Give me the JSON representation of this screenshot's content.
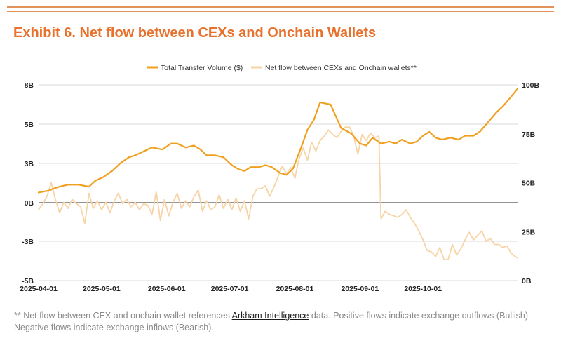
{
  "title": "Exhibit 6. Net flow between CEXs and Onchain Wallets",
  "footnote": {
    "prefix": "** Net flow between CEX and onchain wallet references ",
    "link": "Arkham Intelligence",
    "suffix": " data. Positive flows indicate exchange outflows (Bullish). Negative flows indicate exchange inflows (Bearish)."
  },
  "colors": {
    "volume": "#f0a020",
    "netflow": "#f6d4a6",
    "title": "#e8712e",
    "grid": "#cccccc",
    "zero": "#555555"
  },
  "chart_data": {
    "type": "line",
    "legend_position": "top-center",
    "grid": true,
    "x_ticks": [
      "2025-04-01",
      "2025-05-01",
      "2025-06-01",
      "2025-07-01",
      "2025-08-01",
      "2025-09-01",
      "2025-10-01"
    ],
    "y_left": {
      "ticks": [
        "8B",
        "5B",
        "3B",
        "0B",
        "-3B",
        "-5B"
      ],
      "range": [
        -5,
        8
      ]
    },
    "y_right": {
      "ticks": [
        "100B",
        "75B",
        "50B",
        "25B",
        "0B"
      ],
      "range": [
        0,
        100
      ]
    },
    "series": [
      {
        "name": "Total Transfer Volume ($)",
        "axis": "right",
        "points": [
          [
            "2025-04-01",
            45
          ],
          [
            "2025-04-06",
            46
          ],
          [
            "2025-04-08",
            47
          ],
          [
            "2025-04-11",
            48
          ],
          [
            "2025-04-15",
            49
          ],
          [
            "2025-04-20",
            49
          ],
          [
            "2025-04-25",
            48
          ],
          [
            "2025-04-28",
            51
          ],
          [
            "2025-05-02",
            53
          ],
          [
            "2025-05-06",
            56
          ],
          [
            "2025-05-10",
            60
          ],
          [
            "2025-05-14",
            63
          ],
          [
            "2025-05-17",
            64
          ],
          [
            "2025-05-21",
            66
          ],
          [
            "2025-05-25",
            68
          ],
          [
            "2025-05-30",
            67
          ],
          [
            "2025-06-03",
            70
          ],
          [
            "2025-06-06",
            70
          ],
          [
            "2025-06-10",
            68
          ],
          [
            "2025-06-14",
            69
          ],
          [
            "2025-06-17",
            67
          ],
          [
            "2025-06-20",
            64
          ],
          [
            "2025-06-24",
            64
          ],
          [
            "2025-06-28",
            63
          ],
          [
            "2025-07-02",
            59
          ],
          [
            "2025-07-05",
            57
          ],
          [
            "2025-07-08",
            56
          ],
          [
            "2025-07-11",
            58
          ],
          [
            "2025-07-15",
            58
          ],
          [
            "2025-07-18",
            59
          ],
          [
            "2025-07-21",
            58
          ],
          [
            "2025-07-25",
            55
          ],
          [
            "2025-07-28",
            54
          ],
          [
            "2025-07-31",
            57
          ],
          [
            "2025-08-04",
            68
          ],
          [
            "2025-08-07",
            77
          ],
          [
            "2025-08-10",
            82
          ],
          [
            "2025-08-13",
            91
          ],
          [
            "2025-08-18",
            90
          ],
          [
            "2025-08-23",
            78
          ],
          [
            "2025-08-28",
            75
          ],
          [
            "2025-09-01",
            70
          ],
          [
            "2025-09-04",
            69
          ],
          [
            "2025-09-07",
            73
          ],
          [
            "2025-09-11",
            70
          ],
          [
            "2025-09-15",
            71
          ],
          [
            "2025-09-18",
            70
          ],
          [
            "2025-09-21",
            72
          ],
          [
            "2025-09-25",
            70
          ],
          [
            "2025-09-28",
            71
          ],
          [
            "2025-10-01",
            74
          ],
          [
            "2025-10-04",
            76
          ],
          [
            "2025-10-07",
            73
          ],
          [
            "2025-10-10",
            72
          ],
          [
            "2025-10-14",
            73
          ],
          [
            "2025-10-18",
            72
          ],
          [
            "2025-10-21",
            74
          ],
          [
            "2025-10-25",
            74
          ],
          [
            "2025-10-28",
            76
          ],
          [
            "2025-11-01",
            81
          ],
          [
            "2025-11-05",
            86
          ],
          [
            "2025-11-08",
            89
          ],
          [
            "2025-11-12",
            94
          ],
          [
            "2025-11-15",
            98
          ]
        ]
      },
      {
        "name": "Net flow between CEXs and Onchain wallets**",
        "axis": "left",
        "points": [
          [
            "2025-04-01",
            -0.3
          ],
          [
            "2025-04-03",
            0.1
          ],
          [
            "2025-04-05",
            0.6
          ],
          [
            "2025-04-07",
            1.5
          ],
          [
            "2025-04-09",
            0.4
          ],
          [
            "2025-04-11",
            -0.5
          ],
          [
            "2025-04-13",
            0.2
          ],
          [
            "2025-04-15",
            -0.2
          ],
          [
            "2025-04-17",
            0.4
          ],
          [
            "2025-04-19",
            0.1
          ],
          [
            "2025-04-21",
            -0.1
          ],
          [
            "2025-04-23",
            -1.2
          ],
          [
            "2025-04-25",
            0.8
          ],
          [
            "2025-04-27",
            -0.2
          ],
          [
            "2025-04-29",
            0.3
          ],
          [
            "2025-05-01",
            -0.3
          ],
          [
            "2025-05-03",
            0.2
          ],
          [
            "2025-05-05",
            -0.5
          ],
          [
            "2025-05-07",
            0.3
          ],
          [
            "2025-05-09",
            0.8
          ],
          [
            "2025-05-11",
            0.1
          ],
          [
            "2025-05-13",
            0.4
          ],
          [
            "2025-05-15",
            -0.1
          ],
          [
            "2025-05-17",
            0.2
          ],
          [
            "2025-05-19",
            -0.3
          ],
          [
            "2025-05-21",
            0.1
          ],
          [
            "2025-05-23",
            0.0
          ],
          [
            "2025-05-25",
            -0.6
          ],
          [
            "2025-05-27",
            0.9
          ],
          [
            "2025-05-29",
            -1.0
          ],
          [
            "2025-05-31",
            0.4
          ],
          [
            "2025-06-02",
            -0.7
          ],
          [
            "2025-06-04",
            0.2
          ],
          [
            "2025-06-06",
            0.8
          ],
          [
            "2025-06-08",
            -0.2
          ],
          [
            "2025-06-10",
            0.3
          ],
          [
            "2025-06-12",
            -0.1
          ],
          [
            "2025-06-14",
            0.6
          ],
          [
            "2025-06-16",
            1.0
          ],
          [
            "2025-06-18",
            -0.4
          ],
          [
            "2025-06-20",
            0.3
          ],
          [
            "2025-06-22",
            -0.3
          ],
          [
            "2025-06-24",
            -0.1
          ],
          [
            "2025-06-26",
            0.7
          ],
          [
            "2025-06-28",
            -0.2
          ],
          [
            "2025-06-30",
            0.4
          ],
          [
            "2025-07-02",
            -0.3
          ],
          [
            "2025-07-04",
            0.5
          ],
          [
            "2025-07-06",
            -0.4
          ],
          [
            "2025-07-08",
            0.3
          ],
          [
            "2025-07-10",
            -0.9
          ],
          [
            "2025-07-12",
            0.6
          ],
          [
            "2025-07-14",
            1.1
          ],
          [
            "2025-07-16",
            1.1
          ],
          [
            "2025-07-18",
            1.3
          ],
          [
            "2025-07-20",
            0.6
          ],
          [
            "2025-07-22",
            1.2
          ],
          [
            "2025-07-24",
            1.9
          ],
          [
            "2025-07-26",
            2.6
          ],
          [
            "2025-07-28",
            2.1
          ],
          [
            "2025-07-30",
            2.5
          ],
          [
            "2025-08-01",
            1.8
          ],
          [
            "2025-08-03",
            3.1
          ],
          [
            "2025-08-05",
            3.8
          ],
          [
            "2025-08-07",
            3.0
          ],
          [
            "2025-08-09",
            4.2
          ],
          [
            "2025-08-11",
            3.6
          ],
          [
            "2025-08-13",
            4.3
          ],
          [
            "2025-08-15",
            4.6
          ],
          [
            "2025-08-17",
            5.0
          ],
          [
            "2025-08-19",
            4.7
          ],
          [
            "2025-08-21",
            4.5
          ],
          [
            "2025-08-23",
            4.9
          ],
          [
            "2025-08-25",
            5.2
          ],
          [
            "2025-08-27",
            5.2
          ],
          [
            "2025-08-29",
            4.6
          ],
          [
            "2025-08-31",
            3.4
          ],
          [
            "2025-09-02",
            4.7
          ],
          [
            "2025-09-04",
            4.3
          ],
          [
            "2025-09-06",
            4.8
          ],
          [
            "2025-09-08",
            4.5
          ],
          [
            "2025-09-10",
            4.6
          ],
          [
            "2025-09-11",
            -0.9
          ],
          [
            "2025-09-13",
            -0.4
          ],
          [
            "2025-09-15",
            -0.6
          ],
          [
            "2025-09-17",
            -0.7
          ],
          [
            "2025-09-19",
            -0.8
          ],
          [
            "2025-09-21",
            -0.6
          ],
          [
            "2025-09-23",
            -0.3
          ],
          [
            "2025-09-25",
            -0.8
          ],
          [
            "2025-09-27",
            -1.2
          ],
          [
            "2025-09-29",
            -1.7
          ],
          [
            "2025-10-01",
            -2.3
          ],
          [
            "2025-10-03",
            -3.0
          ],
          [
            "2025-10-05",
            -3.1
          ],
          [
            "2025-10-07",
            -3.4
          ],
          [
            "2025-10-09",
            -2.8
          ],
          [
            "2025-10-11",
            -3.6
          ],
          [
            "2025-10-13",
            -3.6
          ],
          [
            "2025-10-15",
            -2.6
          ],
          [
            "2025-10-17",
            -3.3
          ],
          [
            "2025-10-19",
            -2.9
          ],
          [
            "2025-10-21",
            -2.3
          ],
          [
            "2025-10-23",
            -1.8
          ],
          [
            "2025-10-25",
            -2.3
          ],
          [
            "2025-10-27",
            -2.0
          ],
          [
            "2025-10-29",
            -1.7
          ],
          [
            "2025-10-31",
            -2.4
          ],
          [
            "2025-11-02",
            -2.2
          ],
          [
            "2025-11-04",
            -2.6
          ],
          [
            "2025-11-06",
            -2.6
          ],
          [
            "2025-11-08",
            -2.8
          ],
          [
            "2025-11-10",
            -2.7
          ],
          [
            "2025-11-12",
            -3.2
          ],
          [
            "2025-11-15",
            -3.5
          ]
        ]
      }
    ]
  }
}
